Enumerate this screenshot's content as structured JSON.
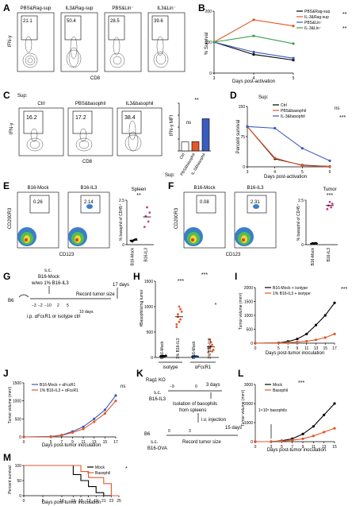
{
  "panels": {
    "A": {
      "letter": "A",
      "plots": [
        {
          "title": "PBS&Rag-sup",
          "pct": "21.1"
        },
        {
          "title": "IL3&Rag-sup",
          "pct": "50.4"
        },
        {
          "title": "PBS&Lin⁻",
          "pct": "28.5"
        },
        {
          "title": "IL3&Lin⁻",
          "pct": "39.6"
        }
      ],
      "ylabel": "IFN-γ",
      "xlabel": "CD8"
    },
    "B": {
      "letter": "B",
      "ylabel": "% Survival",
      "xlabel": "Days post-activation",
      "sig1": "**",
      "sig2": "**"
    },
    "C": {
      "letter": "C",
      "sup_label": "Sup:",
      "plots": [
        {
          "title": "Ctrl",
          "pct": "16.2"
        },
        {
          "title": "PBS&basophil",
          "pct": "17.2"
        },
        {
          "title": "IL3&basophil",
          "pct": "38.4"
        }
      ],
      "ylabel": "IFN-γ",
      "xlabel": "CD8",
      "bar_ylabel": "IFN-γ MFI",
      "ns": "ns",
      "sig": "**",
      "sup2": "Sup:"
    },
    "D": {
      "letter": "D",
      "sup_label": "Sup:",
      "ylabel": "Percent survival",
      "xlabel": "Days post-activation",
      "ns": "ns",
      "sig": "***"
    },
    "E": {
      "letter": "E",
      "plots": [
        {
          "title": "B16-Mock",
          "pct": "0.26"
        },
        {
          "title": "B16-IL3",
          "pct": "2.14"
        }
      ],
      "ylabel": "CD200R3",
      "xlabel": "CD123",
      "dot_title": "Spleen",
      "dot_ylabel": "% basophil of CD45⁺",
      "sig": "**"
    },
    "F": {
      "letter": "F",
      "plots": [
        {
          "title": "B16-Mock",
          "pct": "0.08"
        },
        {
          "title": "B16-IL3",
          "pct": "2.31"
        }
      ],
      "ylabel": "CD200R3",
      "xlabel": "CD123",
      "dot_title": "Tumor",
      "dot_ylabel": "% basophil of CD45⁺",
      "sig": "***"
    },
    "G": {
      "letter": "G",
      "mouse": "B6",
      "sc": "s.c.",
      "line1": "B16-Mock",
      "line2": "w/wo 1% B16-IL3",
      "record": "Record tumor size",
      "days17": "17 days",
      "ip": "i.p. αFcεR1 or isotype ctrl",
      "ticks": [
        "−3",
        "−2",
        "−1",
        "0",
        "2",
        "5",
        "10 days"
      ]
    },
    "H": {
      "letter": "H",
      "ylabel": "#Basophils/mg tumor",
      "cats": [
        "B16-Mock",
        "1% B16-IL3",
        "B16-Mock",
        "1% B16-IL3"
      ],
      "group1": "isotype",
      "group2": "αFcεR1",
      "sig1": "***",
      "sig2": "***",
      "sig3": "*"
    },
    "I": {
      "letter": "I",
      "ylabel": "Tumor volume (mm³)",
      "xlabel": "Days post-tumor inoculation",
      "sig": "***"
    },
    "J": {
      "letter": "J",
      "ylabel": "Tumor volume (mm³)",
      "xlabel": "Days post-tumor inoculation",
      "ns": "ns"
    },
    "K": {
      "letter": "K",
      "mouse1": "Rag1 KO",
      "sc1": "s.c.",
      "cells": "B16-IL3",
      "d0": "0",
      "d3": "3 days",
      "neg9": "−9",
      "isolation": "Isolation of basophils",
      "spleens": "from spleens",
      "iv": "i.v. injection",
      "mouse2": "B6",
      "sc2": "s.c.",
      "ova": "B16-OVA",
      "record": "Record tumor size",
      "days15": "15 days",
      "d0b": "0",
      "d3b": "3"
    },
    "L": {
      "letter": "L",
      "ylabel": "Tumor volume (mm³)",
      "xlabel": "Days post-tumor inoculation",
      "sig": "***",
      "inject": "1×10⁵ basophils"
    },
    "M": {
      "letter": "M",
      "ylabel": "Percent survival",
      "xlabel": "Days post-tumor inoculation",
      "sig": "*"
    }
  },
  "chart_data": [
    {
      "panel": "B",
      "type": "line",
      "x": [
        3,
        4,
        5
      ],
      "xlabel": "Days post-activation",
      "ylabel": "% Survival",
      "ylim": [
        0,
        200
      ],
      "series": [
        {
          "name": "PBS&Rag-sup",
          "values": [
            100,
            60,
            42
          ],
          "color": "#000000"
        },
        {
          "name": "IL-3&Rag-sup",
          "values": [
            100,
            172,
            152
          ],
          "color": "#e2582a"
        },
        {
          "name": "PBS&Lin⁻",
          "values": [
            100,
            68,
            48
          ],
          "color": "#3a5bbf"
        },
        {
          "name": "IL-3&Lin⁻",
          "values": [
            100,
            120,
            95
          ],
          "color": "#3aa04a"
        }
      ]
    },
    {
      "panel": "C",
      "type": "bar",
      "categories": [
        "Ctrl",
        "PBS&basophil",
        "IL-3&basophil"
      ],
      "values": [
        1500,
        1550,
        5400
      ],
      "ylabel": "IFN-γ MFI",
      "ylim": [
        0,
        8000
      ],
      "colors": [
        "#ffffff",
        "#e2582a",
        "#3a5bbf"
      ]
    },
    {
      "panel": "D",
      "type": "line",
      "x": [
        3,
        4,
        5,
        6
      ],
      "xlabel": "Days post-activation",
      "ylabel": "Percent survival",
      "ylim": [
        0,
        150
      ],
      "series": [
        {
          "name": "Ctrl",
          "values": [
            100,
            20,
            4,
            1
          ],
          "color": "#000000"
        },
        {
          "name": "PBS&basophil",
          "values": [
            100,
            22,
            3,
            1
          ],
          "color": "#e2582a"
        },
        {
          "name": "IL-3&basophil",
          "values": [
            100,
            96,
            46,
            15
          ],
          "color": "#3a5bbf"
        }
      ]
    },
    {
      "panel": "E",
      "type": "scatter",
      "categories": [
        "B16-Mock",
        "B16-IL3"
      ],
      "ylabel": "% basophil of CD45⁺",
      "ylim": [
        0,
        2.5
      ],
      "groups": [
        [
          0.22,
          0.18,
          0.25,
          0.28,
          0.3
        ],
        [
          1.0,
          1.6,
          2.1,
          1.3,
          1.8
        ]
      ]
    },
    {
      "panel": "F",
      "type": "scatter",
      "categories": [
        "B16-Mock",
        "B16-IL3"
      ],
      "ylabel": "% basophil of CD45⁺",
      "ylim": [
        0,
        2.5
      ],
      "groups": [
        [
          0.05,
          0.08,
          0.06,
          0.09,
          0.07
        ],
        [
          2.0,
          2.2,
          2.4,
          2.1,
          2.3
        ]
      ]
    },
    {
      "panel": "H",
      "type": "scatter",
      "categories": [
        "B16-Mock",
        "1% B16-IL3",
        "B16-Mock",
        "1% B16-IL3"
      ],
      "ylabel": "#Basophils/mg tumor",
      "ylim": [
        0,
        1500
      ],
      "yticks": [
        0,
        500,
        1000,
        1500
      ],
      "groups": [
        [
          20,
          30,
          15,
          25,
          35,
          22,
          18,
          28
        ],
        [
          600,
          800,
          1000,
          750,
          900,
          650,
          850,
          700,
          950
        ],
        [
          10,
          20,
          15,
          25,
          18,
          12,
          22,
          16
        ],
        [
          100,
          200,
          300,
          250,
          150,
          180,
          350,
          220,
          120
        ]
      ]
    },
    {
      "panel": "I",
      "type": "line",
      "x": [
        0,
        5,
        7,
        9,
        11,
        13,
        15,
        17
      ],
      "xlabel": "Days post-tumor inoculation",
      "ylabel": "Tumor volume (mm³)",
      "ylim": [
        0,
        2000
      ],
      "yticks": [
        0,
        500,
        1000,
        1500,
        2000
      ],
      "series": [
        {
          "name": "B16-Mock + isotype",
          "values": [
            0,
            10,
            60,
            150,
            330,
            650,
            1000,
            1450
          ],
          "color": "#000000"
        },
        {
          "name": "1% B16-IL3 + isotype",
          "values": [
            0,
            5,
            20,
            40,
            70,
            120,
            200,
            330
          ],
          "color": "#e2582a"
        }
      ]
    },
    {
      "panel": "J",
      "type": "line",
      "x": [
        0,
        5,
        7,
        9,
        11,
        13,
        15,
        17
      ],
      "xlabel": "Days post-tumor inoculation",
      "ylabel": "Tumor volume (mm³)",
      "ylim": [
        0,
        1500
      ],
      "yticks": [
        0,
        500,
        1000,
        1500
      ],
      "series": [
        {
          "name": "B16-Mock + αFcεR1",
          "values": [
            0,
            10,
            50,
            150,
            280,
            500,
            750,
            1150
          ],
          "color": "#3a5bbf"
        },
        {
          "name": "1% B16-IL3 + αFcεR1",
          "values": [
            0,
            8,
            40,
            120,
            220,
            420,
            650,
            1000
          ],
          "color": "#e2582a"
        }
      ]
    },
    {
      "panel": "L",
      "type": "line",
      "x": [
        0,
        3,
        5,
        7,
        9,
        11,
        13,
        15
      ],
      "xlabel": "Days post-tumor inoculation",
      "ylabel": "Tumor volume (mm³)",
      "ylim": [
        0,
        3000
      ],
      "yticks": [
        0,
        1000,
        2000,
        3000
      ],
      "series": [
        {
          "name": "Mock",
          "values": [
            0,
            0,
            50,
            150,
            400,
            800,
            1400,
            2000
          ],
          "color": "#000000"
        },
        {
          "name": "Basophil",
          "values": [
            0,
            0,
            30,
            80,
            150,
            300,
            500,
            700
          ],
          "color": "#e2582a"
        }
      ]
    },
    {
      "panel": "M",
      "type": "line",
      "x": [
        0,
        5,
        10,
        13,
        15,
        17,
        19,
        21,
        23,
        25
      ],
      "xlabel": "Days post-tumor inoculation",
      "ylabel": "Percent survival",
      "ylim": [
        0,
        100
      ],
      "series": [
        {
          "name": "Mock",
          "values": [
            100,
            100,
            100,
            70,
            50,
            30,
            10,
            0,
            0,
            0
          ],
          "color": "#000000"
        },
        {
          "name": "Basophil",
          "values": [
            100,
            100,
            100,
            100,
            80,
            60,
            60,
            40,
            0,
            0
          ],
          "color": "#e2582a"
        }
      ]
    }
  ]
}
